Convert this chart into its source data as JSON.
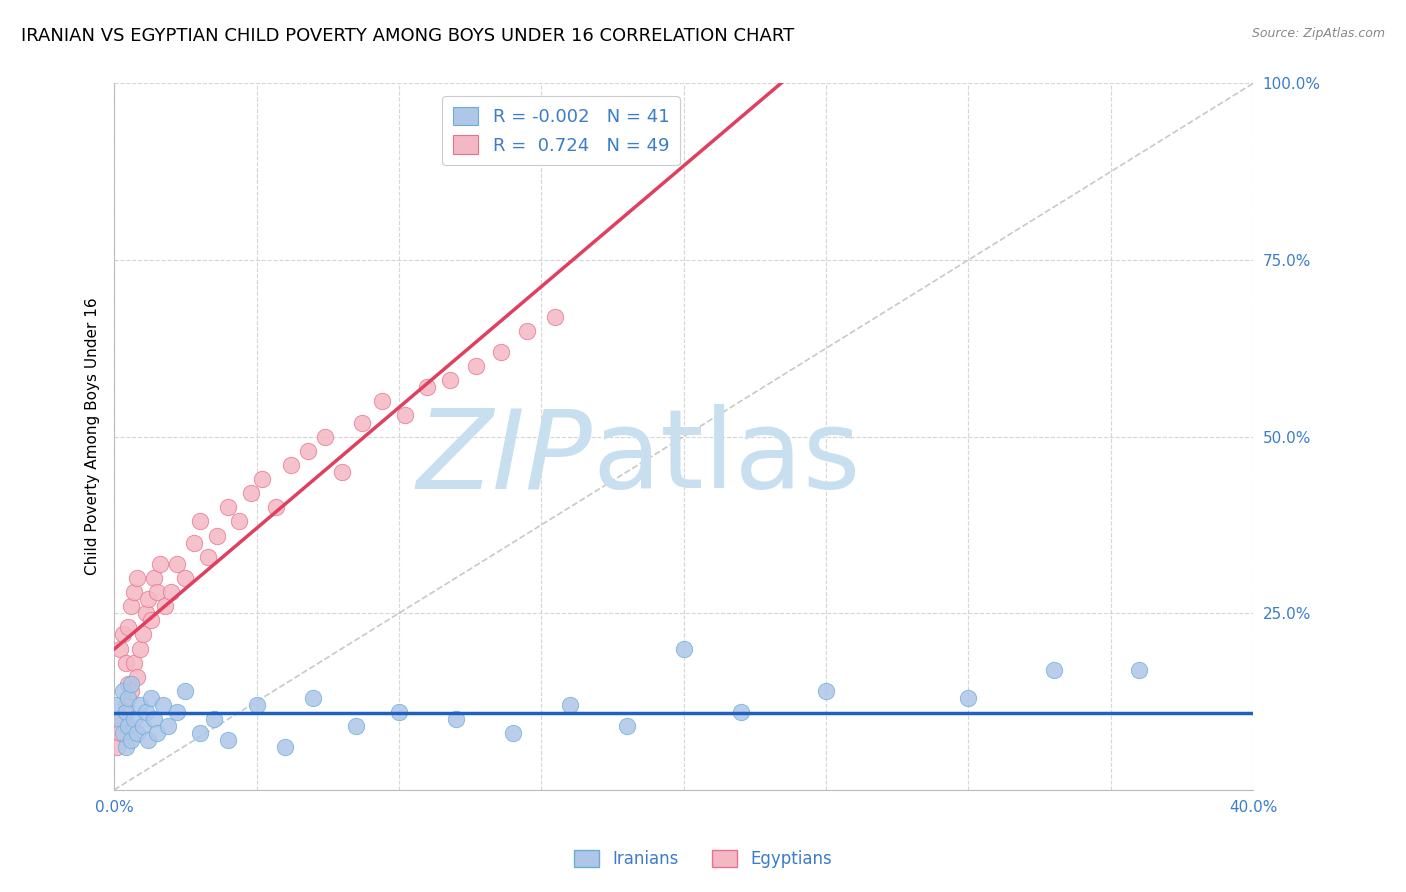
{
  "title": "IRANIAN VS EGYPTIAN CHILD POVERTY AMONG BOYS UNDER 16 CORRELATION CHART",
  "source": "Source: ZipAtlas.com",
  "ylabel": "Child Poverty Among Boys Under 16",
  "xlim": [
    0.0,
    0.4
  ],
  "ylim": [
    0.0,
    1.0
  ],
  "xticks": [
    0.0,
    0.05,
    0.1,
    0.15,
    0.2,
    0.25,
    0.3,
    0.35,
    0.4
  ],
  "xticklabels": [
    "0.0%",
    "",
    "",
    "",
    "",
    "",
    "",
    "",
    "40.0%"
  ],
  "yticks": [
    0.0,
    0.25,
    0.5,
    0.75,
    1.0
  ],
  "yticklabels": [
    "",
    "25.0%",
    "50.0%",
    "75.0%",
    "100.0%"
  ],
  "grid_color": "#cccccc",
  "background_color": "#ffffff",
  "iranians_color": "#aec6e8",
  "egyptians_color": "#f4b8c4",
  "iranians_edge_color": "#6aaed6",
  "egyptians_edge_color": "#e87090",
  "iranians_line_color": "#2060c0",
  "egyptians_line_color": "#e04060",
  "diagonal_color": "#bbbbbb",
  "r_iranians": -0.002,
  "n_iranians": 41,
  "r_egyptians": 0.724,
  "n_egyptians": 49,
  "title_fontsize": 13,
  "axis_label_fontsize": 11,
  "tick_fontsize": 11,
  "legend_fontsize": 13,
  "iranians_x": [
    0.001,
    0.002,
    0.003,
    0.003,
    0.004,
    0.004,
    0.005,
    0.005,
    0.006,
    0.006,
    0.007,
    0.008,
    0.009,
    0.01,
    0.011,
    0.012,
    0.013,
    0.014,
    0.015,
    0.017,
    0.019,
    0.022,
    0.025,
    0.03,
    0.035,
    0.04,
    0.05,
    0.06,
    0.07,
    0.085,
    0.1,
    0.12,
    0.14,
    0.16,
    0.18,
    0.2,
    0.22,
    0.25,
    0.3,
    0.33,
    0.36
  ],
  "iranians_y": [
    0.12,
    0.1,
    0.08,
    0.14,
    0.06,
    0.11,
    0.09,
    0.13,
    0.07,
    0.15,
    0.1,
    0.08,
    0.12,
    0.09,
    0.11,
    0.07,
    0.13,
    0.1,
    0.08,
    0.12,
    0.09,
    0.11,
    0.14,
    0.08,
    0.1,
    0.07,
    0.12,
    0.06,
    0.13,
    0.09,
    0.11,
    0.1,
    0.08,
    0.12,
    0.09,
    0.2,
    0.11,
    0.14,
    0.13,
    0.17,
    0.17
  ],
  "egyptians_x": [
    0.001,
    0.002,
    0.002,
    0.003,
    0.003,
    0.004,
    0.004,
    0.005,
    0.005,
    0.006,
    0.006,
    0.007,
    0.007,
    0.008,
    0.008,
    0.009,
    0.01,
    0.011,
    0.012,
    0.013,
    0.014,
    0.015,
    0.016,
    0.018,
    0.02,
    0.022,
    0.025,
    0.028,
    0.03,
    0.033,
    0.036,
    0.04,
    0.044,
    0.048,
    0.052,
    0.057,
    0.062,
    0.068,
    0.074,
    0.08,
    0.087,
    0.094,
    0.102,
    0.11,
    0.118,
    0.127,
    0.136,
    0.145,
    0.155
  ],
  "egyptians_y": [
    0.06,
    0.08,
    0.2,
    0.1,
    0.22,
    0.12,
    0.18,
    0.15,
    0.23,
    0.14,
    0.26,
    0.18,
    0.28,
    0.16,
    0.3,
    0.2,
    0.22,
    0.25,
    0.27,
    0.24,
    0.3,
    0.28,
    0.32,
    0.26,
    0.28,
    0.32,
    0.3,
    0.35,
    0.38,
    0.33,
    0.36,
    0.4,
    0.38,
    0.42,
    0.44,
    0.4,
    0.46,
    0.48,
    0.5,
    0.45,
    0.52,
    0.55,
    0.53,
    0.57,
    0.58,
    0.6,
    0.62,
    0.65,
    0.67
  ],
  "watermark_zip": "ZIP",
  "watermark_atlas": "atlas",
  "watermark_color_zip": "#c8dff0",
  "watermark_color_atlas": "#c8dff0"
}
